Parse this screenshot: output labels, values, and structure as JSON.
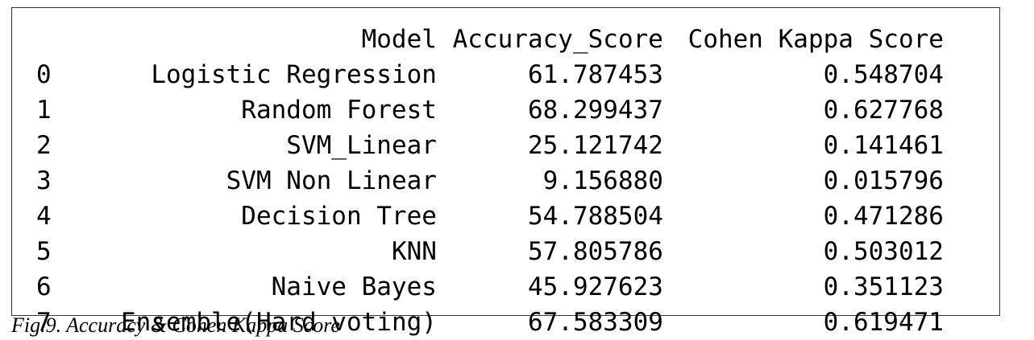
{
  "table": {
    "columns": [
      "",
      "Model",
      "Accuracy_Score",
      "Cohen Kappa Score"
    ],
    "rows": [
      [
        "0",
        "Logistic Regression",
        "61.787453",
        "0.548704"
      ],
      [
        "1",
        "Random Forest",
        "68.299437",
        "0.627768"
      ],
      [
        "2",
        "SVM_Linear",
        "25.121742",
        "0.141461"
      ],
      [
        "3",
        "SVM Non Linear",
        "9.156880",
        "0.015796"
      ],
      [
        "4",
        "Decision Tree",
        "54.788504",
        "0.471286"
      ],
      [
        "5",
        "KNN",
        "57.805786",
        "0.503012"
      ],
      [
        "6",
        "Naive Bayes",
        "45.927623",
        "0.351123"
      ],
      [
        "7",
        "Ensemble(Hard voting)",
        "67.583309",
        "0.619471"
      ]
    ]
  },
  "caption": "Fig.9. Accuracy & Cohen Kappa Score"
}
